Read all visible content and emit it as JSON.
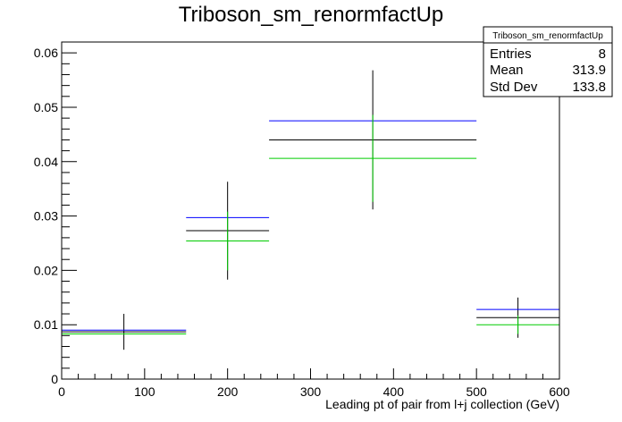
{
  "chart_data": {
    "type": "scatter",
    "title": "Triboson_sm_renormfactUp",
    "xlabel": "Leading pt of pair from l+j collection (GeV)",
    "ylabel": "",
    "xlim": [
      0,
      600
    ],
    "ylim": [
      0,
      0.062
    ],
    "grid": false,
    "x_ticks": [
      0,
      100,
      200,
      300,
      400,
      500,
      600
    ],
    "x_tick_labels": [
      "0",
      "100",
      "200",
      "300",
      "400",
      "500",
      "600"
    ],
    "y_ticks": [
      0,
      0.01,
      0.02,
      0.03,
      0.04,
      0.05,
      0.06
    ],
    "y_tick_labels": [
      "0",
      "0.01",
      "0.02",
      "0.03",
      "0.04",
      "0.05",
      "0.06"
    ],
    "bins": [
      {
        "low": 0,
        "high": 150
      },
      {
        "low": 150,
        "high": 250
      },
      {
        "low": 250,
        "high": 500
      },
      {
        "low": 500,
        "high": 600
      }
    ],
    "series": [
      {
        "color": "#000000",
        "values": [
          0.0087,
          0.0273,
          0.044,
          0.0113
        ],
        "errors": [
          0.0033,
          0.009,
          0.0128,
          0.0037
        ]
      },
      {
        "color": "#0000ff",
        "values": [
          0.009,
          0.0297,
          0.0475,
          0.0128
        ],
        "errors": [
          0,
          0,
          0,
          0
        ]
      },
      {
        "color": "#00cc00",
        "values": [
          0.0083,
          0.0254,
          0.0406,
          0.01
        ],
        "errors": [
          0.0001,
          0.0054,
          0.008,
          0.0017
        ]
      }
    ],
    "stats_box": {
      "title": "Triboson_sm_renormfactUp",
      "rows": [
        {
          "label": "Entries",
          "value": "8"
        },
        {
          "label": "Mean",
          "value": "313.9"
        },
        {
          "label": "Std Dev",
          "value": "133.8"
        }
      ]
    }
  }
}
